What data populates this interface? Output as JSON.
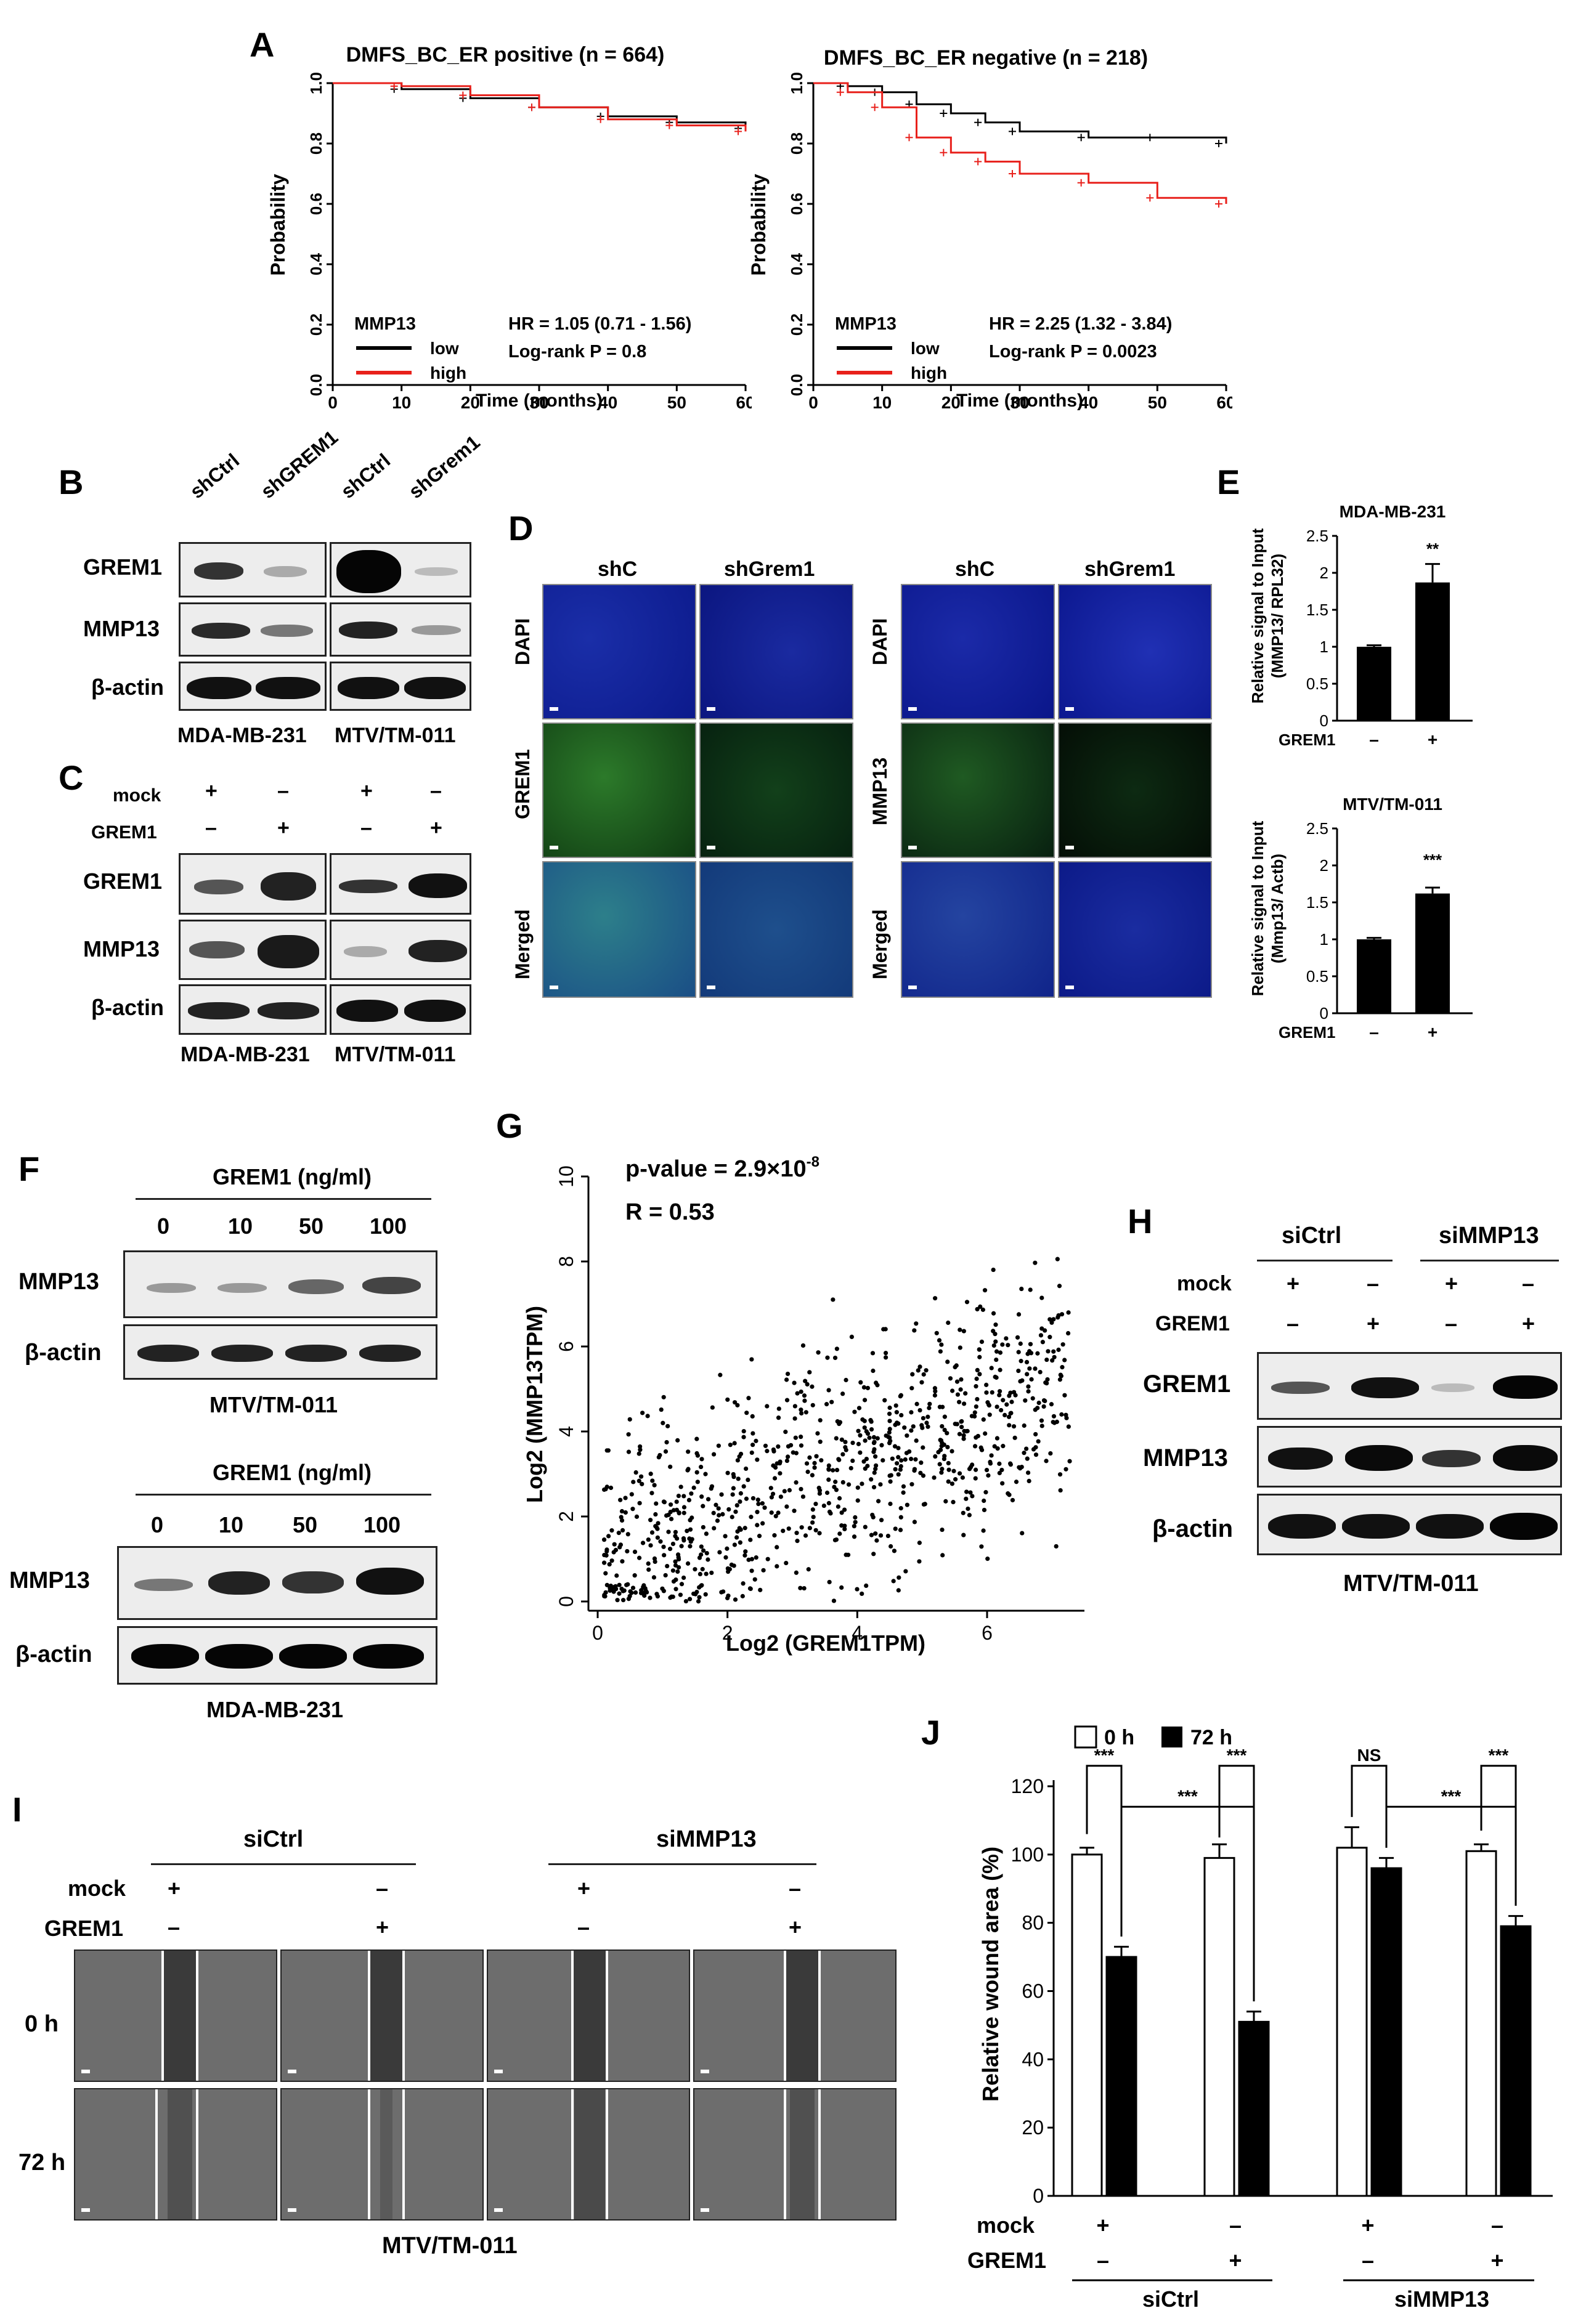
{
  "panel_letters": {
    "A": "A",
    "B": "B",
    "C": "C",
    "D": "D",
    "E": "E",
    "F": "F",
    "G": "G",
    "H": "H",
    "I": "I",
    "J": "J"
  },
  "panelA": {
    "left": {
      "title": "DMFS_BC_ER positive (n = 664)",
      "ylabel": "Probability",
      "xlabel": "Time (months)",
      "legend_title": "MMP13",
      "legend_low": "low",
      "legend_high": "high",
      "hr": "HR = 1.05 (0.71 - 1.56)",
      "logrank": "Log-rank P = 0.8"
    },
    "right": {
      "title": "DMFS_BC_ER negative (n = 218)",
      "ylabel": "Probability",
      "xlabel": "Time (months)",
      "legend_title": "MMP13",
      "legend_low": "low",
      "legend_high": "high",
      "hr": "HR = 2.25 (1.32 - 3.84)",
      "logrank": "Log-rank P = 0.0023"
    },
    "colors": {
      "low": "#000000",
      "high": "#e8201b"
    }
  },
  "panelB": {
    "lanes": [
      "shCtrl",
      "shGREM1",
      "shCtrl",
      "shGrem1"
    ],
    "rows": [
      "GREM1",
      "MMP13",
      "β-actin"
    ],
    "cells": [
      "MDA-MB-231",
      "MTV/TM-011"
    ]
  },
  "panelC": {
    "row_mock": "mock",
    "row_grem1": "GREM1",
    "mock_signs": [
      "+",
      "–",
      "+",
      "–"
    ],
    "grem1_signs": [
      "–",
      "+",
      "–",
      "+"
    ],
    "rows": [
      "GREM1",
      "MMP13",
      "β-actin"
    ],
    "cells": [
      "MDA-MB-231",
      "MTV/TM-011"
    ]
  },
  "panelD": {
    "cols_left": [
      "shC",
      "shGrem1"
    ],
    "cols_right": [
      "shC",
      "shGrem1"
    ],
    "rows_left": [
      "DAPI",
      "GREM1",
      "Merged"
    ],
    "rows_right": [
      "DAPI",
      "MMP13",
      "Merged"
    ]
  },
  "panelE": {
    "top": {
      "title": "MDA-MB-231",
      "ylabel1": "Relative signal to Input",
      "ylabel2": "(MMP13/ RPL32)",
      "xrow": "GREM1",
      "signs": [
        "–",
        "+"
      ],
      "sig": "**",
      "yticks": [
        "0",
        "0.5",
        "1",
        "1.5",
        "2",
        "2.5"
      ]
    },
    "bottom": {
      "title": "MTV/TM-011",
      "ylabel1": "Relative signal to Input",
      "ylabel2": "(Mmp13/ Actb)",
      "xrow": "GREM1",
      "signs": [
        "–",
        "+"
      ],
      "sig": "***",
      "yticks": [
        "0",
        "0.5",
        "1",
        "1.5",
        "2",
        "2.5"
      ]
    }
  },
  "panelF": {
    "header": "GREM1  (ng/ml)",
    "doses": [
      "0",
      "10",
      "50",
      "100"
    ],
    "rows": [
      "MMP13",
      "β-actin"
    ],
    "cell_top": "MTV/TM-011",
    "cell_bottom": "MDA-MB-231"
  },
  "panelG": {
    "pvalue": "p-value = 2.9×10",
    "pexp": "-8",
    "r": "R = 0.53",
    "xlabel": "Log2 (GREM1TPM)",
    "ylabel": "Log2 (MMP13TPM)"
  },
  "panelH": {
    "groups": [
      "siCtrl",
      "siMMP13"
    ],
    "row_mock": "mock",
    "row_grem1": "GREM1",
    "mock_signs": [
      "+",
      "–",
      "+",
      "–"
    ],
    "grem1_signs": [
      "–",
      "+",
      "–",
      "+"
    ],
    "rows": [
      "GREM1",
      "MMP13",
      "β-actin"
    ],
    "cell": "MTV/TM-011"
  },
  "panelI": {
    "groups": [
      "siCtrl",
      "siMMP13"
    ],
    "row_mock": "mock",
    "row_grem1": "GREM1",
    "mock_signs": [
      "+",
      "–",
      "+",
      "–"
    ],
    "grem1_signs": [
      "–",
      "+",
      "–",
      "+"
    ],
    "times": [
      "0 h",
      "72 h"
    ],
    "cell": "MTV/TM-011"
  },
  "panelJ": {
    "legend": [
      "0 h",
      "72 h"
    ],
    "ylabel": "Relative wound area (%)",
    "xrow_mock": "mock",
    "xrow_grem1": "GREM1",
    "groups": [
      "siCtrl",
      "siMMP13"
    ],
    "mock_signs": [
      "+",
      "–",
      "+",
      "–"
    ],
    "grem1_signs": [
      "–",
      "+",
      "–",
      "+"
    ],
    "sig_labels": [
      "***",
      "***",
      "***",
      "NS",
      "***",
      "***"
    ]
  },
  "chart_data": [
    {
      "type": "line",
      "title": "DMFS_BC_ER positive (n = 664)",
      "xlabel": "Time (months)",
      "ylabel": "Probability",
      "xlim": [
        0,
        60
      ],
      "ylim": [
        0,
        1
      ],
      "series": [
        {
          "name": "low",
          "x": [
            0,
            10,
            20,
            30,
            40,
            50,
            60
          ],
          "values": [
            1.0,
            0.98,
            0.95,
            0.92,
            0.89,
            0.87,
            0.85
          ]
        },
        {
          "name": "high",
          "x": [
            0,
            10,
            20,
            30,
            40,
            50,
            60
          ],
          "values": [
            1.0,
            0.99,
            0.96,
            0.92,
            0.88,
            0.86,
            0.84
          ]
        }
      ]
    },
    {
      "type": "line",
      "title": "DMFS_BC_ER negative (n = 218)",
      "xlabel": "Time (months)",
      "ylabel": "Probability",
      "xlim": [
        0,
        60
      ],
      "ylim": [
        0,
        1
      ],
      "series": [
        {
          "name": "low",
          "x": [
            0,
            5,
            10,
            15,
            20,
            25,
            30,
            40,
            50,
            60
          ],
          "values": [
            1.0,
            0.99,
            0.97,
            0.93,
            0.9,
            0.87,
            0.84,
            0.82,
            0.82,
            0.8
          ]
        },
        {
          "name": "high",
          "x": [
            0,
            5,
            10,
            15,
            20,
            25,
            30,
            40,
            50,
            60
          ],
          "values": [
            1.0,
            0.97,
            0.92,
            0.82,
            0.77,
            0.74,
            0.7,
            0.67,
            0.62,
            0.6
          ]
        }
      ]
    },
    {
      "type": "bar",
      "title": "MDA-MB-231",
      "categories": [
        "–",
        "+"
      ],
      "values": [
        1.0,
        1.87
      ],
      "errors": [
        0.02,
        0.25
      ],
      "ylim": [
        0,
        2.5
      ]
    },
    {
      "type": "bar",
      "title": "MTV/TM-011",
      "categories": [
        "–",
        "+"
      ],
      "values": [
        1.0,
        1.62
      ],
      "errors": [
        0.02,
        0.08
      ],
      "ylim": [
        0,
        2.5
      ]
    },
    {
      "type": "scatter",
      "xlabel": "Log2 (GREM1TPM)",
      "ylabel": "Log2 (MMP13TPM)",
      "xlim": [
        0,
        7.5
      ],
      "ylim": [
        0,
        10
      ]
    },
    {
      "type": "bar",
      "ylabel": "Relative wound area (%)",
      "ylim": [
        0,
        120
      ],
      "categories": [
        "siCtrl mock",
        "siCtrl GREM1",
        "siMMP13 mock",
        "siMMP13 GREM1"
      ],
      "series": [
        {
          "name": "0 h",
          "values": [
            100,
            99,
            102,
            101
          ],
          "errors": [
            2,
            4,
            6,
            2
          ]
        },
        {
          "name": "72 h",
          "values": [
            70,
            51,
            96,
            79
          ],
          "errors": [
            3,
            3,
            3,
            3
          ]
        }
      ]
    }
  ]
}
